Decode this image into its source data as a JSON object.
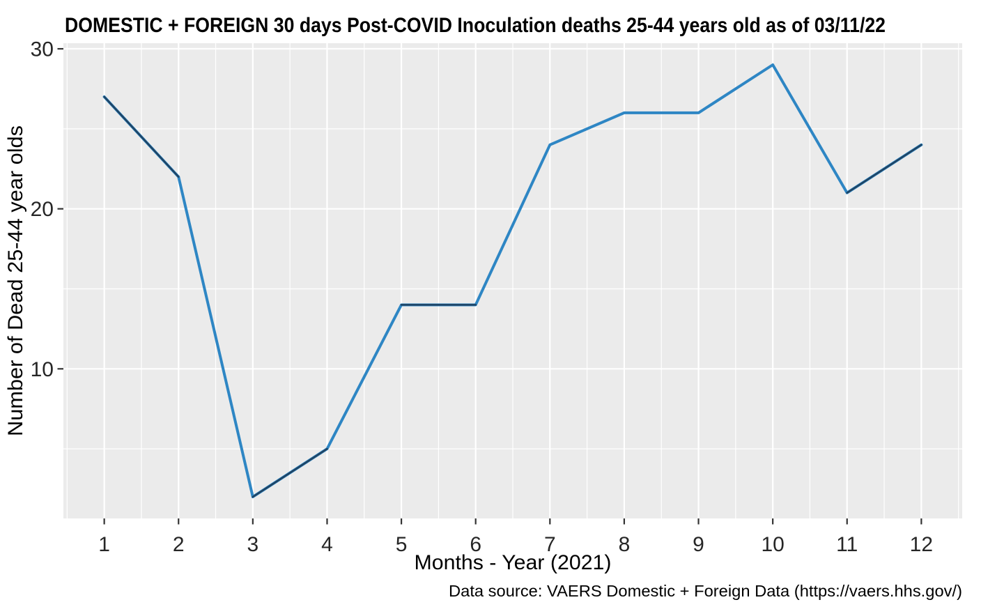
{
  "chart_data": {
    "type": "line",
    "title": "DOMESTIC + FOREIGN 30 days Post-COVID Inoculation deaths 25-44 years old as of 03/11/22",
    "xlabel": "Months - Year (2021)",
    "ylabel": "Number of Dead 25-44 year olds",
    "caption": "Data source: VAERS Domestic + Foreign Data (https://vaers.hhs.gov/)",
    "x": [
      1,
      2,
      3,
      4,
      5,
      6,
      7,
      8,
      9,
      10,
      11,
      12
    ],
    "values": [
      27,
      22,
      2,
      5,
      14,
      14,
      24,
      26,
      26,
      29,
      21,
      24
    ],
    "x_ticks": [
      "1",
      "2",
      "3",
      "4",
      "5",
      "6",
      "7",
      "8",
      "9",
      "10",
      "11",
      "12"
    ],
    "y_ticks": [
      10,
      20,
      30
    ],
    "y_minor": [
      5,
      15,
      25
    ],
    "xlim": [
      0.45,
      12.55
    ],
    "ylim": [
      0.65,
      30.35
    ],
    "legend": "none",
    "grid": {
      "major": true,
      "minor": true
    },
    "overlap_segments": [
      [
        1,
        2
      ],
      [
        3,
        4
      ],
      [
        5,
        6
      ],
      [
        11,
        12
      ]
    ],
    "colors": {
      "line": "#2E86C4",
      "line_overlap": "#1F4464",
      "panel_bg": "#EBEBEB",
      "grid": "#FFFFFF",
      "tick_mark": "#333333",
      "tick_text": "#262626"
    }
  }
}
